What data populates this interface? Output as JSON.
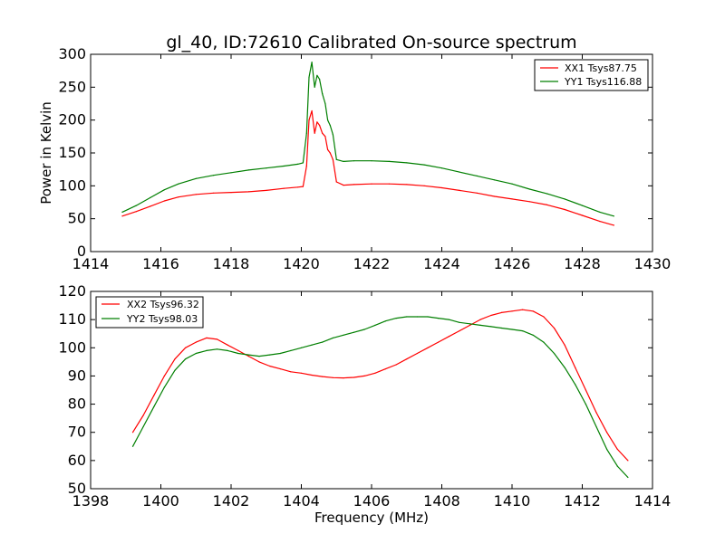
{
  "figure": {
    "title": "gl_40, ID:72610 Calibrated On-source spectrum",
    "xlabel": "Frequency (MHz)"
  },
  "colors": {
    "xx": "#ff0000",
    "yy": "#007f00"
  },
  "chart_data": [
    {
      "type": "line",
      "title": "gl_40, ID:72610 Calibrated On-source spectrum",
      "xlabel": "",
      "ylabel": "Power in Kelvin",
      "xlim": [
        1414,
        1430
      ],
      "ylim": [
        0,
        300
      ],
      "xticks": [
        1414,
        1416,
        1418,
        1420,
        1422,
        1424,
        1426,
        1428,
        1430
      ],
      "yticks": [
        0,
        50,
        100,
        150,
        200,
        250,
        300
      ],
      "grid": false,
      "legend_position": "top-right",
      "series": [
        {
          "name": "XX1 Tsys87.75",
          "color": "#ff0000",
          "x": [
            1414.9,
            1415.3,
            1415.7,
            1416.1,
            1416.5,
            1417.0,
            1417.5,
            1418.0,
            1418.5,
            1419.0,
            1419.5,
            1419.9,
            1420.05,
            1420.15,
            1420.22,
            1420.3,
            1420.38,
            1420.45,
            1420.52,
            1420.6,
            1420.68,
            1420.75,
            1420.82,
            1420.9,
            1421.0,
            1421.2,
            1421.5,
            1422.0,
            1422.5,
            1423.0,
            1423.5,
            1424.0,
            1424.5,
            1425.0,
            1425.5,
            1426.0,
            1426.5,
            1427.0,
            1427.5,
            1428.0,
            1428.5,
            1428.9
          ],
          "values": [
            54,
            61,
            69,
            77,
            83,
            87,
            89,
            90,
            91,
            93,
            96,
            98,
            99,
            130,
            200,
            214,
            180,
            197,
            192,
            180,
            175,
            155,
            150,
            140,
            106,
            101,
            102,
            103,
            103,
            102,
            100,
            97,
            93,
            89,
            84,
            80,
            76,
            71,
            64,
            55,
            46,
            40
          ]
        },
        {
          "name": "YY1 Tsys116.88",
          "color": "#007f00",
          "x": [
            1414.9,
            1415.3,
            1415.7,
            1416.1,
            1416.5,
            1417.0,
            1417.5,
            1418.0,
            1418.5,
            1419.0,
            1419.5,
            1419.9,
            1420.05,
            1420.15,
            1420.22,
            1420.3,
            1420.38,
            1420.45,
            1420.52,
            1420.6,
            1420.68,
            1420.75,
            1420.82,
            1420.9,
            1421.0,
            1421.2,
            1421.5,
            1422.0,
            1422.5,
            1423.0,
            1423.5,
            1424.0,
            1424.5,
            1425.0,
            1425.5,
            1426.0,
            1426.5,
            1427.0,
            1427.5,
            1428.0,
            1428.5,
            1428.9
          ],
          "values": [
            60,
            70,
            82,
            94,
            103,
            111,
            116,
            120,
            124,
            127,
            130,
            133,
            135,
            180,
            265,
            288,
            250,
            268,
            262,
            240,
            225,
            200,
            192,
            178,
            140,
            137,
            138,
            138,
            137,
            135,
            132,
            127,
            121,
            115,
            109,
            103,
            95,
            88,
            80,
            70,
            60,
            54
          ]
        }
      ]
    },
    {
      "type": "line",
      "title": "",
      "xlabel": "Frequency (MHz)",
      "ylabel": "",
      "xlim": [
        1398,
        1414
      ],
      "ylim": [
        50,
        120
      ],
      "xticks": [
        1398,
        1400,
        1402,
        1404,
        1406,
        1408,
        1410,
        1412,
        1414
      ],
      "yticks": [
        50,
        60,
        70,
        80,
        90,
        100,
        110,
        120
      ],
      "grid": false,
      "legend_position": "top-left",
      "series": [
        {
          "name": "XX2 Tsys96.32",
          "color": "#ff0000",
          "x": [
            1399.2,
            1399.5,
            1399.8,
            1400.1,
            1400.4,
            1400.7,
            1401.0,
            1401.3,
            1401.6,
            1401.9,
            1402.2,
            1402.5,
            1402.8,
            1403.1,
            1403.4,
            1403.7,
            1404.0,
            1404.3,
            1404.6,
            1404.9,
            1405.2,
            1405.5,
            1405.8,
            1406.1,
            1406.4,
            1406.7,
            1407.0,
            1407.3,
            1407.6,
            1407.9,
            1408.2,
            1408.5,
            1408.8,
            1409.1,
            1409.4,
            1409.7,
            1410.0,
            1410.3,
            1410.6,
            1410.9,
            1411.2,
            1411.5,
            1411.8,
            1412.1,
            1412.4,
            1412.7,
            1413.0,
            1413.3
          ],
          "values": [
            70,
            76,
            83,
            90,
            96,
            100,
            102,
            103.5,
            103,
            101,
            99,
            97,
            95,
            93.5,
            92.5,
            91.5,
            91,
            90.3,
            89.8,
            89.4,
            89.3,
            89.5,
            90,
            91,
            92.5,
            94,
            96,
            98,
            100,
            102,
            104,
            106,
            108,
            110,
            111.5,
            112.5,
            113,
            113.5,
            113,
            111,
            107,
            101,
            93,
            85,
            77,
            70,
            64,
            60
          ]
        },
        {
          "name": "YY2 Tsys98.03",
          "color": "#007f00",
          "x": [
            1399.2,
            1399.5,
            1399.8,
            1400.1,
            1400.4,
            1400.7,
            1401.0,
            1401.3,
            1401.6,
            1401.9,
            1402.2,
            1402.5,
            1402.8,
            1403.1,
            1403.4,
            1403.7,
            1404.0,
            1404.3,
            1404.6,
            1404.9,
            1405.2,
            1405.5,
            1405.8,
            1406.1,
            1406.4,
            1406.7,
            1407.0,
            1407.3,
            1407.6,
            1407.9,
            1408.2,
            1408.5,
            1408.8,
            1409.1,
            1409.4,
            1409.7,
            1410.0,
            1410.3,
            1410.6,
            1410.9,
            1411.2,
            1411.5,
            1411.8,
            1412.1,
            1412.4,
            1412.7,
            1413.0,
            1413.3
          ],
          "values": [
            65,
            72,
            79,
            86,
            92,
            96,
            98,
            99,
            99.5,
            99,
            98,
            97.5,
            97,
            97.5,
            98,
            99,
            100,
            101,
            102,
            103.5,
            104.5,
            105.5,
            106.5,
            108,
            109.5,
            110.5,
            111,
            111,
            111,
            110.5,
            110,
            109,
            108.5,
            108,
            107.5,
            107,
            106.5,
            106,
            104.5,
            102,
            98,
            93,
            87,
            80,
            72,
            64,
            58,
            54
          ]
        }
      ]
    }
  ]
}
